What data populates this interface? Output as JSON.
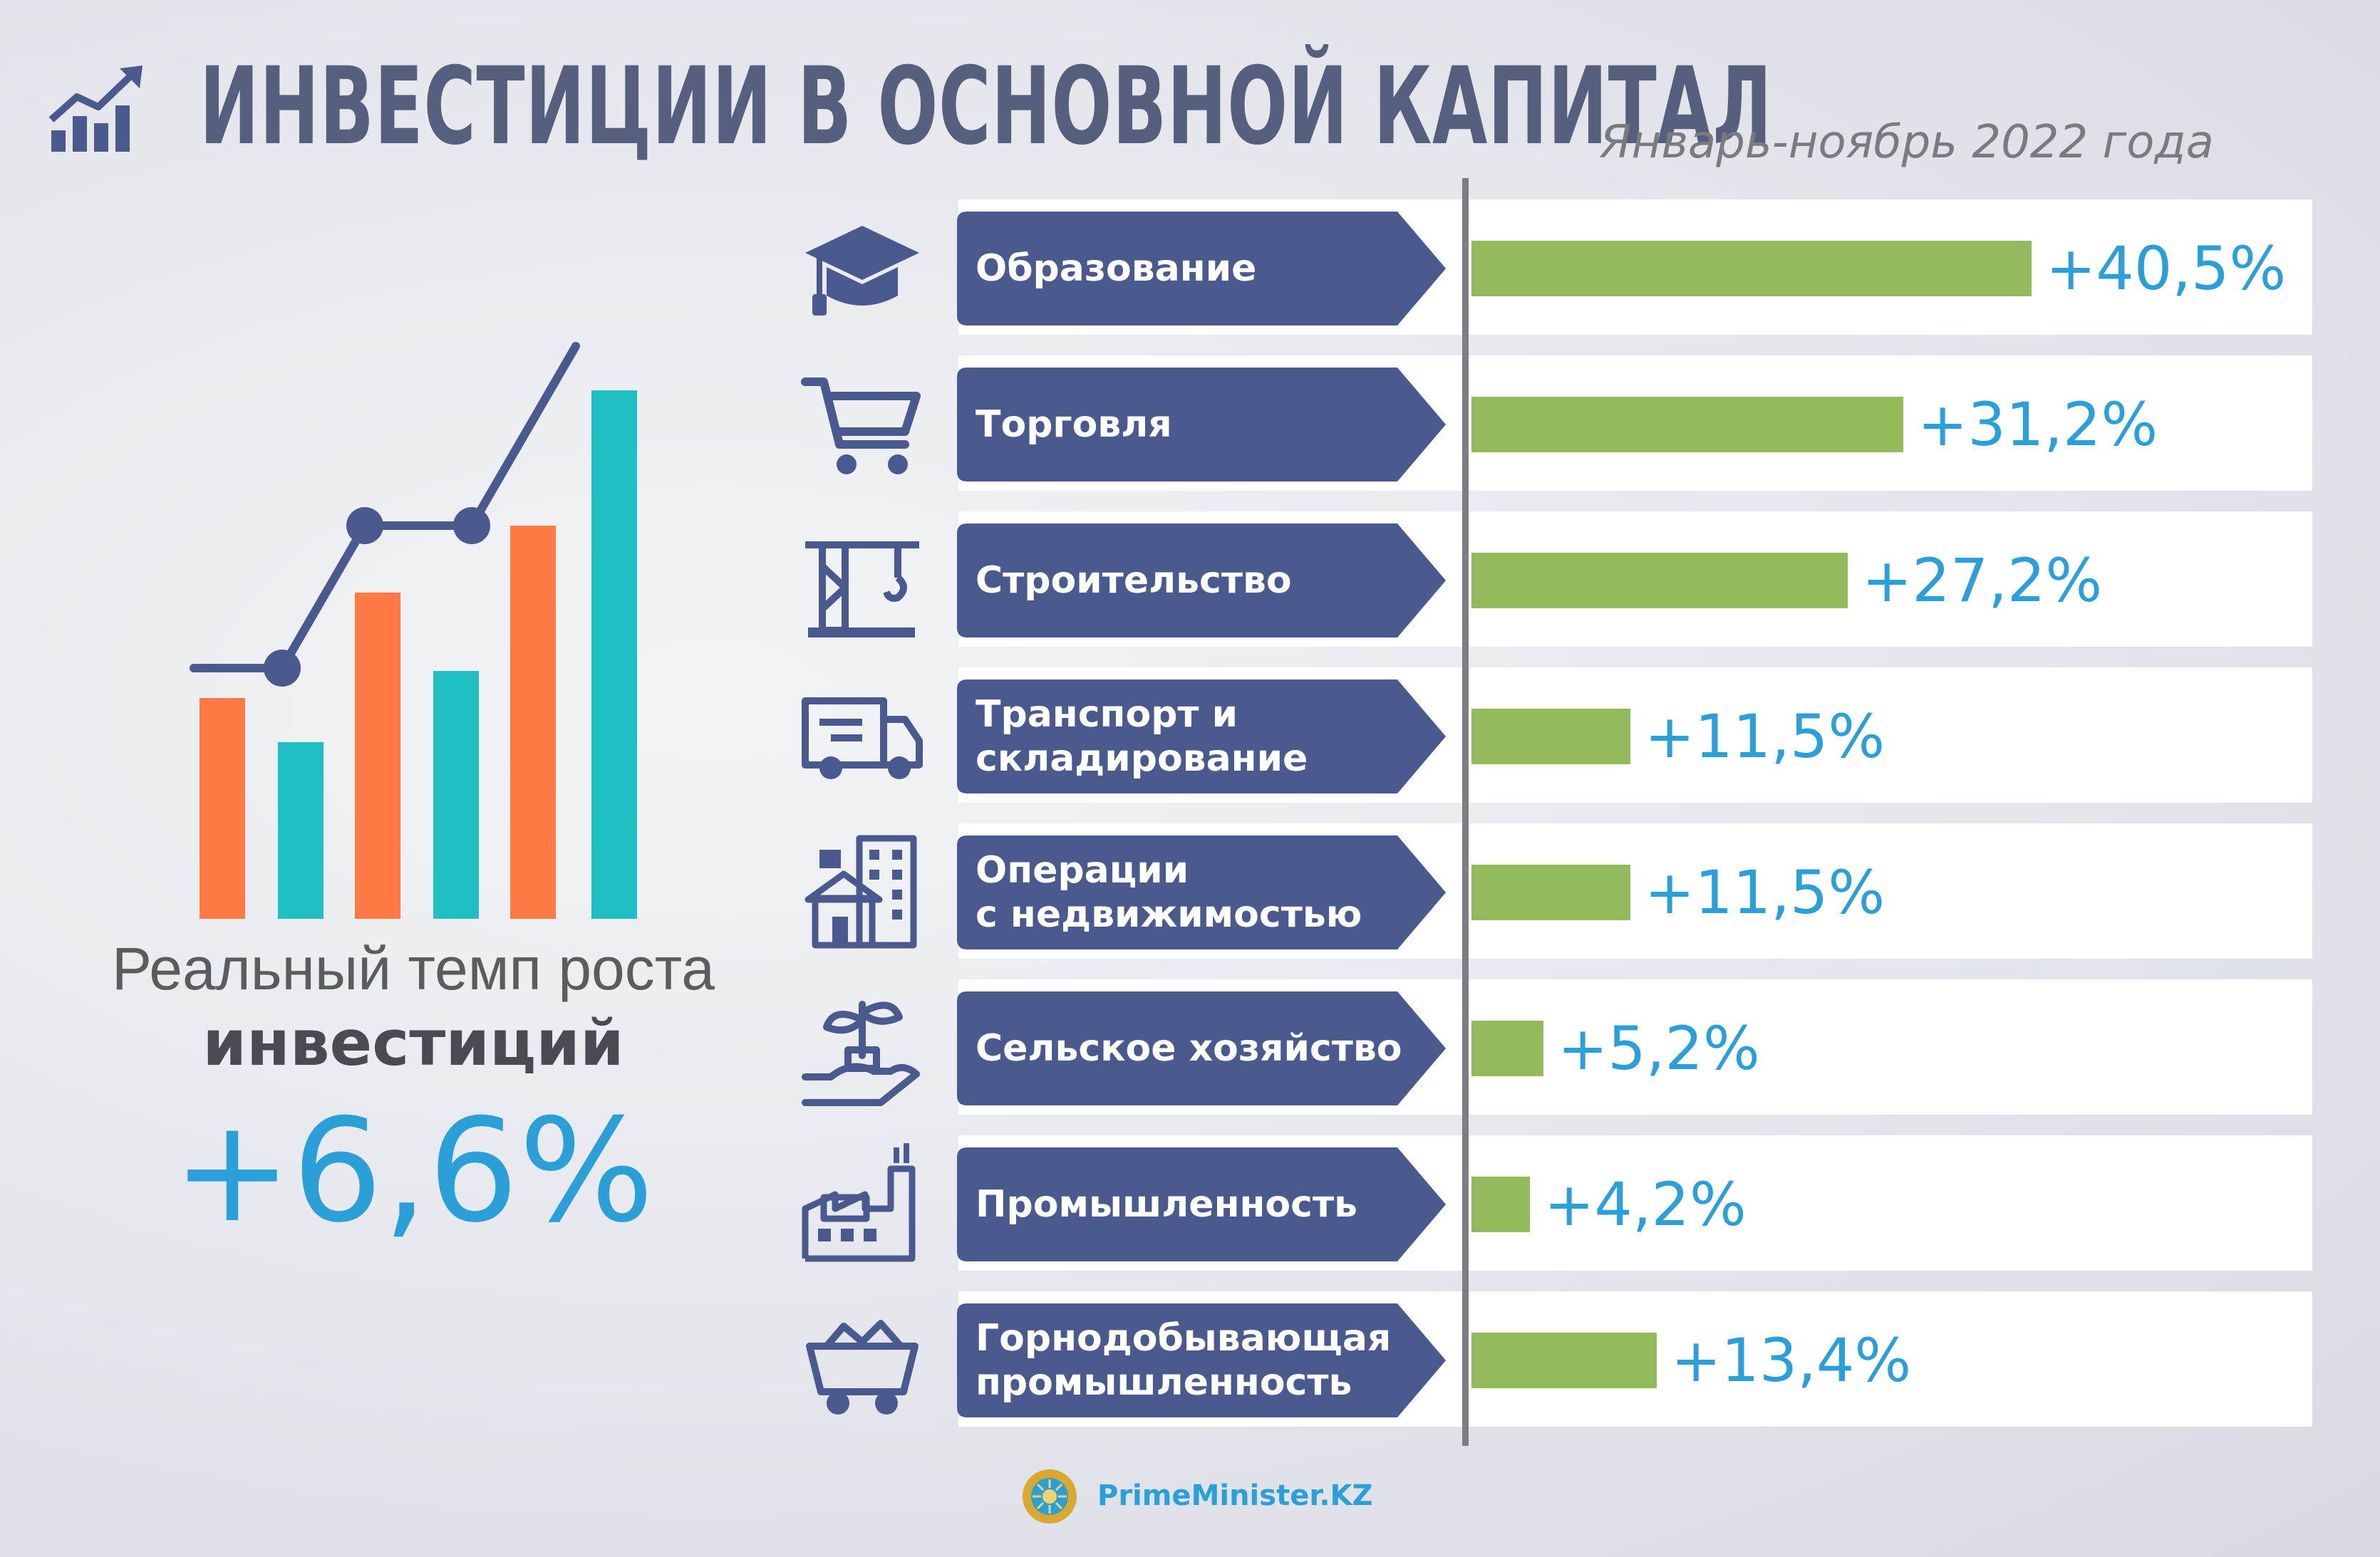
{
  "header": {
    "title": "ИНВЕСТИЦИИ В ОСНОВНОЙ КАПИТАЛ",
    "subtitle": "Январь-ноябрь 2022 года",
    "icon": "growth-chart-icon"
  },
  "summary": {
    "label": "Реальный темп роста",
    "emphasis": "инвестиций",
    "value": "+6,6%"
  },
  "chart_data": {
    "type": "bar",
    "orientation": "horizontal",
    "categories": [
      "Образование",
      "Торговля",
      "Строительство",
      "Транспорт и\nскладирование",
      "Операции\nс недвижимостью",
      "Сельское хозяйство",
      "Промышленность",
      "Горнодобывающая\nпромышленность"
    ],
    "values": [
      40.5,
      31.2,
      27.2,
      11.5,
      11.5,
      5.2,
      4.2,
      13.4
    ],
    "value_labels": [
      "+40,5%",
      "+31,2%",
      "+27,2%",
      "+11,5%",
      "+11,5%",
      "+5,2%",
      "+4,2%",
      "+13,4%"
    ],
    "icons": [
      "graduation-cap-icon",
      "shopping-cart-icon",
      "construction-crane-icon",
      "delivery-truck-icon",
      "real-estate-buildings-icon",
      "plant-in-hand-icon",
      "factory-icon",
      "mining-cart-icon"
    ],
    "xlim": [
      0,
      40.5
    ],
    "bar_color": "#93bb5c",
    "label_color": "#2a9fd8",
    "tag_color": "#4a5a8e"
  },
  "footer": {
    "brand": "PrimeMinister.KZ",
    "emblem": "kazakhstan-emblem-icon"
  },
  "colors": {
    "title": "#565f7e",
    "accent": "#2a9fd8",
    "orange": "#ff7a45",
    "teal": "#1fbfc3",
    "navy": "#4a5a8e"
  }
}
